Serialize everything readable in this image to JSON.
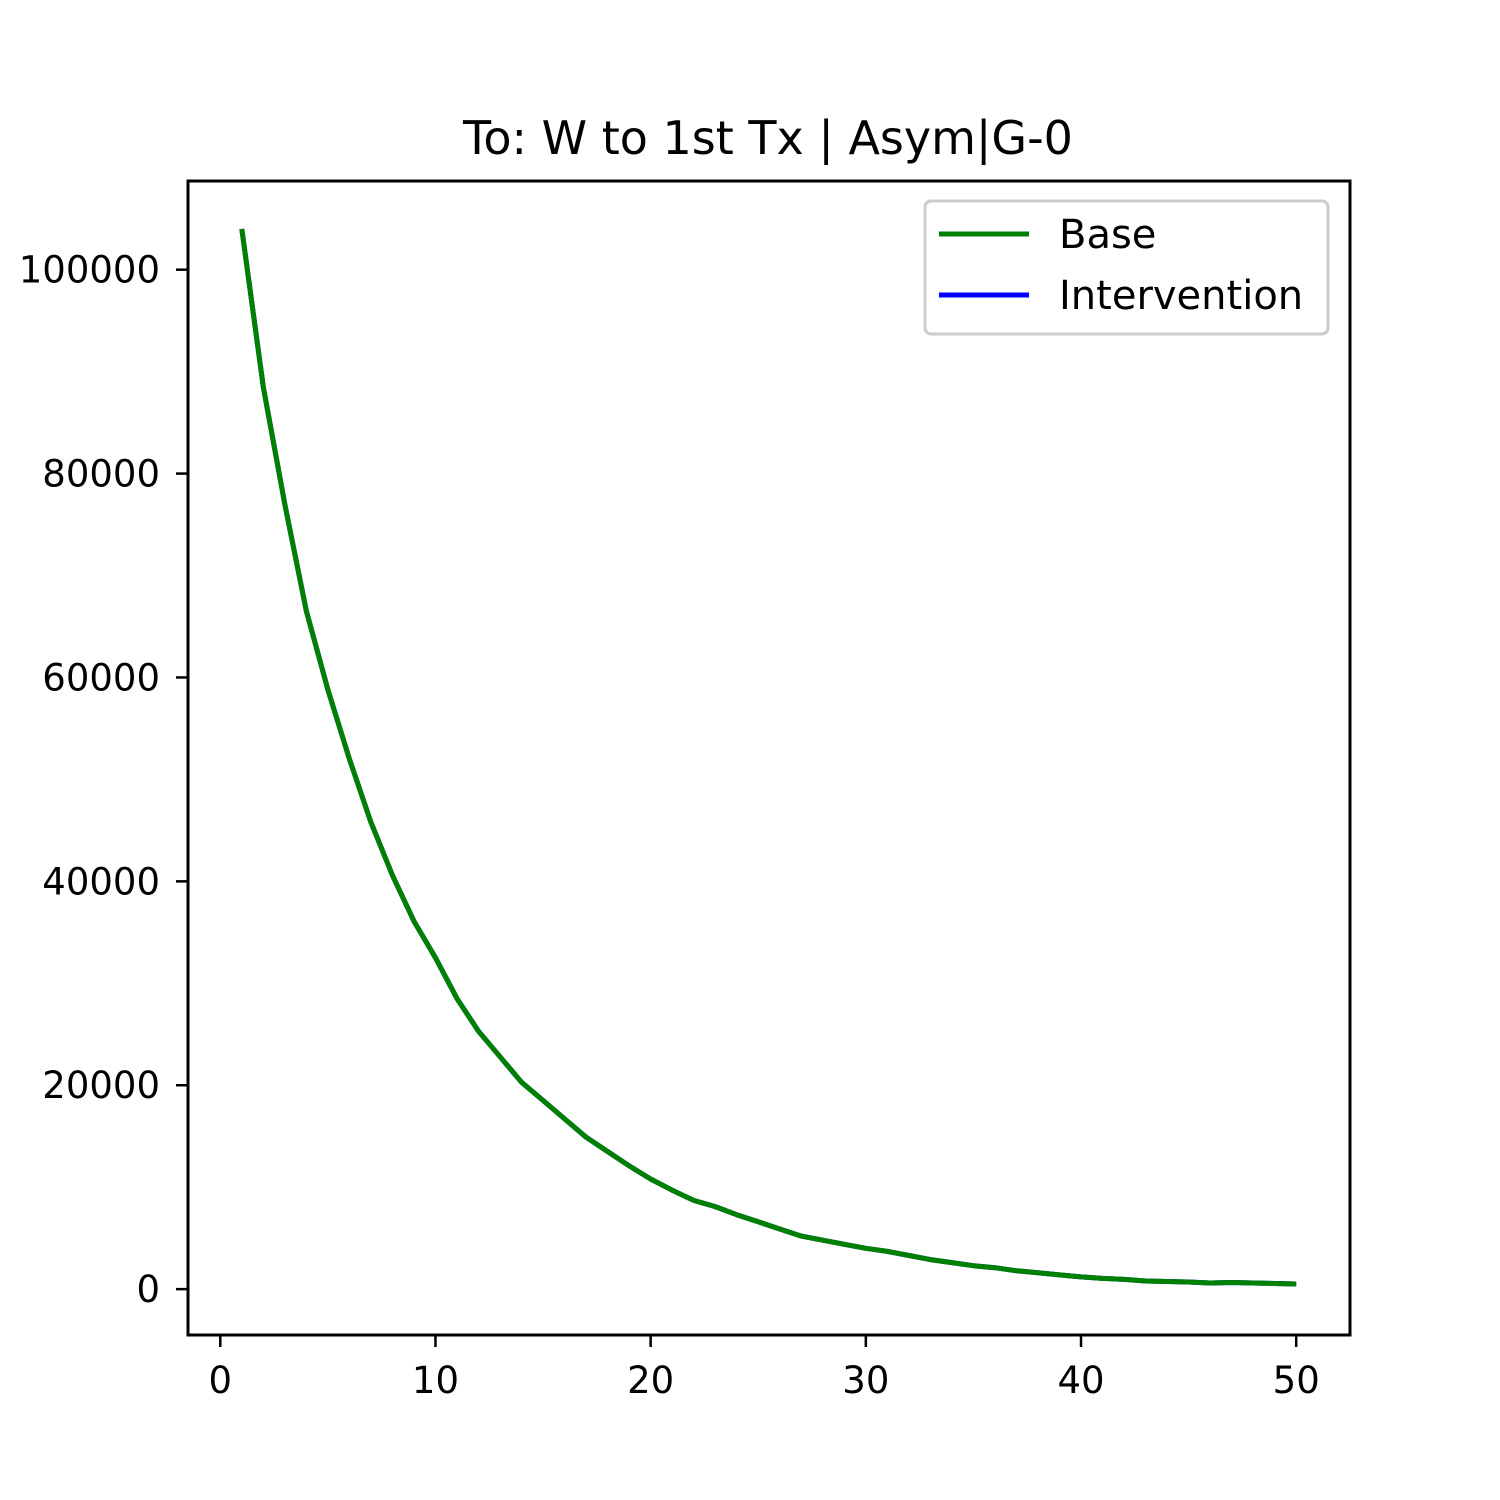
{
  "chart_data": {
    "type": "line",
    "title": "To: W to 1st Tx | Asym|G-0",
    "xlabel": "",
    "ylabel": "",
    "xlim": [
      -1.5,
      52.5
    ],
    "ylim": [
      -4500,
      108700
    ],
    "xticks": [
      0,
      10,
      20,
      30,
      40,
      50
    ],
    "yticks": [
      0,
      20000,
      40000,
      60000,
      80000,
      100000
    ],
    "xtick_labels": [
      "0",
      "10",
      "20",
      "30",
      "40",
      "50"
    ],
    "ytick_labels": [
      "0",
      "20000",
      "40000",
      "60000",
      "80000",
      "100000"
    ],
    "grid": false,
    "legend_position": "top-right",
    "x": [
      1,
      2,
      3,
      4,
      5,
      6,
      7,
      8,
      9,
      10,
      11,
      12,
      13,
      14,
      15,
      16,
      17,
      18,
      19,
      20,
      21,
      22,
      23,
      24,
      25,
      26,
      27,
      28,
      29,
      30,
      31,
      32,
      33,
      34,
      35,
      36,
      37,
      38,
      39,
      40,
      41,
      42,
      43,
      44,
      45,
      46,
      47,
      48,
      49,
      50
    ],
    "series": [
      {
        "name": "Base",
        "color": "#008000",
        "values": [
          104000,
          88500,
          77000,
          66500,
          58800,
          52000,
          45800,
          40600,
          36100,
          32500,
          28500,
          25300,
          22800,
          20300,
          18500,
          16700,
          14900,
          13500,
          12100,
          10800,
          9700,
          8700,
          8100,
          7300,
          6600,
          5900,
          5200,
          4800,
          4400,
          4000,
          3700,
          3300,
          2900,
          2600,
          2300,
          2100,
          1800,
          1600,
          1400,
          1200,
          1050,
          950,
          800,
          750,
          700,
          600,
          650,
          600,
          550,
          500
        ]
      },
      {
        "name": "Intervention",
        "color": "#0000ff",
        "values": [
          104000,
          88500,
          77000,
          66500,
          58800,
          52000,
          45800,
          40600,
          36100,
          32500,
          28500,
          25300,
          22800,
          20300,
          18500,
          16700,
          14900,
          13500,
          12100,
          10800,
          9700,
          8700,
          8100,
          7300,
          6600,
          5900,
          5200,
          4800,
          4400,
          4000,
          3700,
          3300,
          2900,
          2600,
          2300,
          2100,
          1800,
          1600,
          1400,
          1200,
          1050,
          950,
          800,
          750,
          700,
          600,
          650,
          600,
          550,
          500
        ]
      }
    ]
  }
}
